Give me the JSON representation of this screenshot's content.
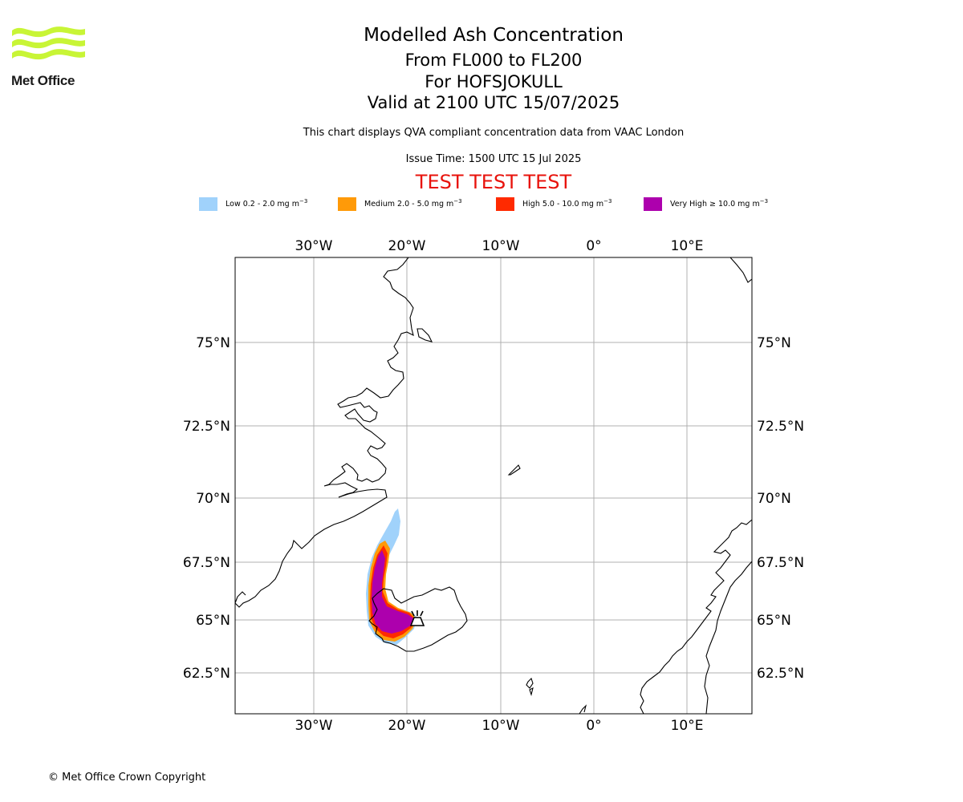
{
  "logo": {
    "text": "Met Office",
    "color": "#c8f536"
  },
  "header": {
    "title": "Modelled Ash Concentration",
    "levels": "From FL000 to FL200",
    "volcano": "For HOFSJOKULL",
    "valid": "Valid at 2100 UTC 15/07/2025",
    "description": "This chart displays QVA compliant concentration data from VAAC London",
    "issue_time": "Issue Time: 1500 UTC 15 Jul 2025",
    "test_banner": "TEST TEST TEST",
    "test_color": "#e8130c"
  },
  "legend": [
    {
      "label": "Low 0.2 - 2.0 mg m",
      "color": "#a0d2fb"
    },
    {
      "label": "Medium 2.0 - 5.0 mg m",
      "color": "#ff9a08"
    },
    {
      "label": "High 5.0 - 10.0 mg m",
      "color": "#ff2a00"
    },
    {
      "label": "Very High ≥ 10.0 mg m",
      "color": "#ad00ad"
    }
  ],
  "legend_unit_exponent": "−3",
  "map": {
    "lon_labels": [
      "30°W",
      "20°W",
      "10°W",
      "0°",
      "10°E"
    ],
    "lat_labels": [
      "75°N",
      "72.5°N",
      "70°N",
      "67.5°N",
      "65°N",
      "62.5°N"
    ],
    "grid": true,
    "volcano_marker": "volcano-icon"
  },
  "footer": {
    "copyright": "© Met Office Crown Copyright"
  }
}
